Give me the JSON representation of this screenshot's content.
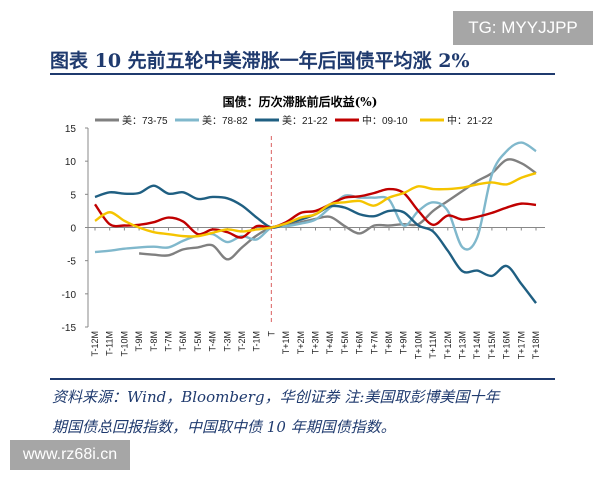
{
  "watermarks": {
    "top": "TG: MYYJJPP",
    "bottom": "www.rz68i.cn"
  },
  "figure_title": "图表 10   先前五轮中美滞胀一年后国债平均涨 2%",
  "source_line1": "资料来源：Wind，Bloomberg，华创证券  注:美国取彭博美国十年",
  "source_line2": "期国债总回报指数，中国取中债 10 年期国债指数。",
  "chart_data": {
    "type": "line",
    "title": "国债：历次滞胀前后收益(%)",
    "xlabel": "",
    "ylabel": "",
    "ylim": [
      -15,
      15
    ],
    "yticks": [
      15,
      10,
      5,
      0,
      -5,
      -10,
      -15
    ],
    "legend_position": "top",
    "grid": false,
    "reference_line": {
      "x": "T",
      "style": "dashed",
      "color": "#e07a7a"
    },
    "categories": [
      "T-12M",
      "T-11M",
      "T-10M",
      "T-9M",
      "T-8M",
      "T-7M",
      "T-6M",
      "T-5M",
      "T-4M",
      "T-3M",
      "T-2M",
      "T-1M",
      "T",
      "T+1M",
      "T+2M",
      "T+3M",
      "T+4M",
      "T+5M",
      "T+6M",
      "T+7M",
      "T+8M",
      "T+9M",
      "T+10M",
      "T+11M",
      "T+12M",
      "T+13M",
      "T+14M",
      "T+15M",
      "T+16M",
      "T+17M",
      "T+18M"
    ],
    "series": [
      {
        "name": "美：73-75",
        "color": "#808080",
        "values": [
          null,
          null,
          null,
          -3.9,
          -4.1,
          -4.2,
          -3.3,
          -3.0,
          -2.7,
          -4.8,
          -3.0,
          -1.2,
          0,
          0.3,
          0.8,
          1.3,
          1.6,
          0.2,
          -0.9,
          0.3,
          0.3,
          0.5,
          0.5,
          2.5,
          4.0,
          5.5,
          7.0,
          8.2,
          10.2,
          9.7,
          8.2
        ]
      },
      {
        "name": "美：78-82",
        "color": "#80b8cc",
        "values": [
          -3.7,
          -3.5,
          -3.2,
          -3.0,
          -2.9,
          -3.0,
          -2.0,
          -1.2,
          -1.0,
          -2.2,
          -1.3,
          -1.8,
          0,
          0.2,
          0.6,
          1.2,
          3.0,
          4.8,
          4.5,
          4.5,
          4.2,
          0.3,
          2.5,
          3.8,
          2.5,
          -3.0,
          -1.5,
          8.0,
          11.5,
          12.8,
          11.5
        ]
      },
      {
        "name": "美：21-22",
        "color": "#1f5f82",
        "values": [
          4.6,
          5.3,
          5.1,
          5.2,
          6.3,
          5.1,
          5.3,
          4.3,
          4.6,
          4.4,
          3.3,
          1.5,
          0,
          0.6,
          1.2,
          2.0,
          3.2,
          3.0,
          2.0,
          1.7,
          2.5,
          2.3,
          0.3,
          -0.6,
          -3.5,
          -6.6,
          -6.5,
          -7.3,
          -5.8,
          -8.5,
          -11.4
        ]
      },
      {
        "name": "中：09-10",
        "color": "#c00000",
        "values": [
          3.5,
          0.5,
          0.3,
          0.4,
          0.8,
          1.5,
          0.9,
          -1.0,
          -0.3,
          -0.7,
          -1.5,
          0.2,
          0,
          0.8,
          2.2,
          2.5,
          3.5,
          4.5,
          4.7,
          5.2,
          5.8,
          5.2,
          2.5,
          0.4,
          1.8,
          1.2,
          1.6,
          2.2,
          3.0,
          3.6,
          3.4
        ]
      },
      {
        "name": "中：21-22",
        "color": "#f5c400",
        "values": [
          1.0,
          2.3,
          1.0,
          0.0,
          -0.7,
          -1.0,
          -1.3,
          -1.3,
          -0.8,
          -0.3,
          -0.6,
          -0.3,
          0,
          0.6,
          1.5,
          2.0,
          3.5,
          3.8,
          4.0,
          3.3,
          4.5,
          5.2,
          6.2,
          5.8,
          5.8,
          6.0,
          6.5,
          6.8,
          6.5,
          7.5,
          8.2
        ]
      }
    ]
  }
}
